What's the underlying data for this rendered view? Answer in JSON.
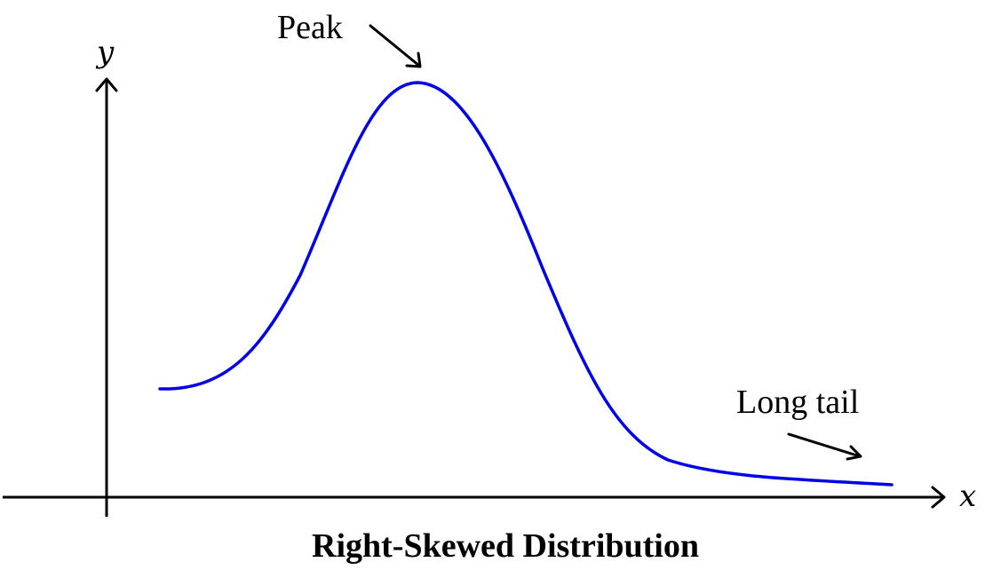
{
  "diagram": {
    "axes": {
      "x_label": "x",
      "y_label": "y"
    },
    "annotations": {
      "peak": "Peak",
      "tail": "Long tail"
    },
    "caption": "Right-Skewed Distribution",
    "colors": {
      "curve": "#0000e6",
      "axis": "#000000",
      "text": "#000000"
    }
  }
}
